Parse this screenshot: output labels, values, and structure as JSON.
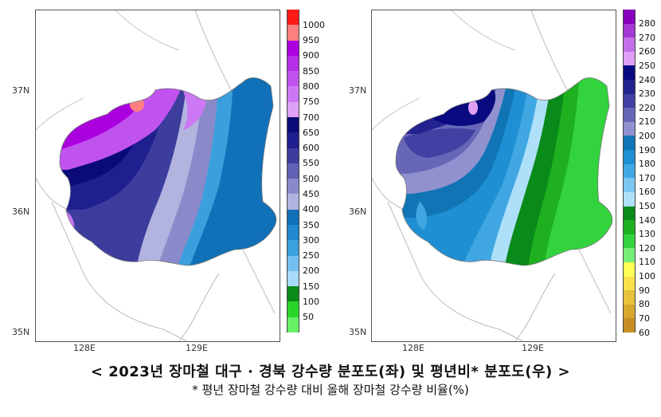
{
  "left_map": {
    "y_ticks": [
      "37N",
      "36N",
      "35N"
    ],
    "x_ticks": [
      "128E",
      "129E"
    ],
    "legend": {
      "labels": [
        "1000",
        "950",
        "900",
        "850",
        "800",
        "750",
        "700",
        "650",
        "600",
        "550",
        "500",
        "450",
        "400",
        "350",
        "300",
        "250",
        "200",
        "150",
        "100",
        "50"
      ],
      "colors": [
        "#ff1a1a",
        "#ff8080",
        "#aa00dd",
        "#b42fe6",
        "#c053ee",
        "#cc78f4",
        "#dda2f8",
        "#0a0a78",
        "#1f1f8f",
        "#3d3d9e",
        "#6161b3",
        "#8a8acb",
        "#b3b3e0",
        "#1070b8",
        "#2088cc",
        "#3aa0dd",
        "#72bff0",
        "#a8dbfa",
        "#0a8a1a",
        "#2ad52a",
        "#66f066"
      ]
    },
    "regions": [
      "pink local maximum near 37N",
      "purple northwest",
      "dark blue center",
      "light blue east"
    ]
  },
  "right_map": {
    "y_ticks": [
      "37N",
      "36N",
      "35N"
    ],
    "x_ticks": [
      "128E",
      "129E"
    ],
    "legend": {
      "labels": [
        "280",
        "270",
        "260",
        "250",
        "240",
        "230",
        "220",
        "210",
        "200",
        "190",
        "180",
        "170",
        "160",
        "150",
        "140",
        "130",
        "120",
        "110",
        "100",
        "90",
        "80",
        "70",
        "60"
      ],
      "colors": [
        "#8800bb",
        "#a438d4",
        "#c370e8",
        "#dfa0f6",
        "#0a0a80",
        "#23238f",
        "#4141a3",
        "#6767b8",
        "#9191cf",
        "#1175b5",
        "#1f8fd3",
        "#41a7e3",
        "#7cc6f2",
        "#aee0fa",
        "#0a8a1a",
        "#1fb01f",
        "#33d33d",
        "#77ee77",
        "#ffff55",
        "#f7e04a",
        "#e6c33a",
        "#d6a82e",
        "#c68e22"
      ]
    },
    "regions": [
      "violet spot near 37N",
      "dark navy north",
      "blue center",
      "green east"
    ]
  },
  "caption": {
    "title": "< 2023년 장마철 대구 · 경북 강수량 분포도(좌) 및 평년비* 분포도(우) >",
    "subtitle": "* 평년 장마철 강수량 대비 올해 장마철 강수량 비율(%)"
  }
}
